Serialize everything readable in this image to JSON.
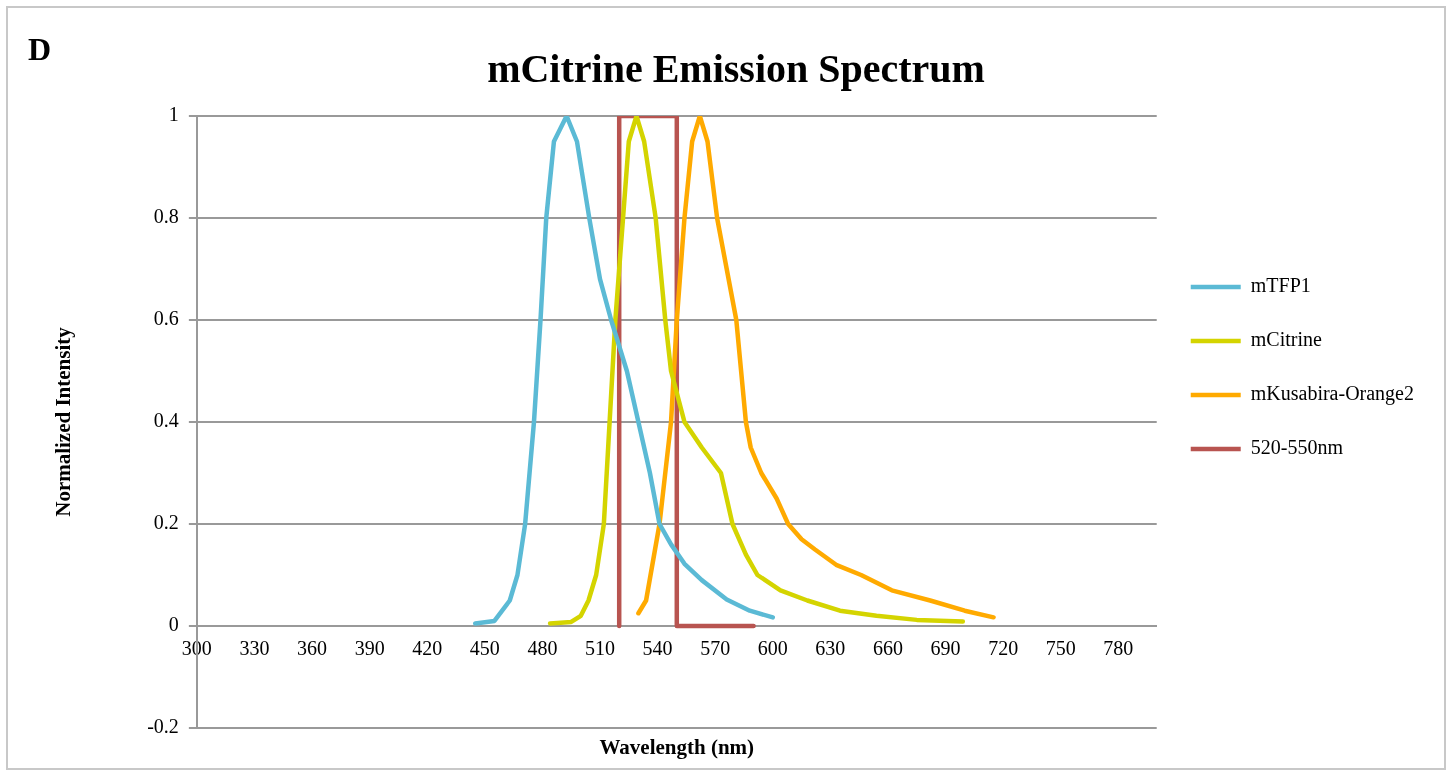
{
  "chart_data": {
    "type": "line",
    "title": "mCitrine Emission Spectrum",
    "xlabel": "Wavelength (nm)",
    "ylabel": "Normalized Intensity",
    "annotations": [
      "D"
    ],
    "xlim": [
      300,
      800
    ],
    "xticks": [
      300,
      330,
      360,
      390,
      420,
      450,
      480,
      510,
      540,
      570,
      600,
      630,
      660,
      690,
      720,
      750,
      780
    ],
    "ylim": [
      -0.2,
      1
    ],
    "yticks": [
      -0.2,
      0,
      0.2,
      0.4,
      0.6,
      0.8,
      1
    ],
    "grid": "y",
    "legend": "right",
    "marker": "none",
    "line_style": "solid",
    "series": [
      {
        "name": "mTFP1",
        "color": "#5bbad5",
        "x": [
          445,
          455,
          463,
          467,
          471,
          475.6,
          479,
          482,
          486,
          492.6,
          498,
          504.4,
          510,
          515.8,
          524,
          530,
          536,
          541,
          547,
          554,
          563,
          576,
          588,
          600
        ],
        "values": [
          0.005,
          0.01,
          0.05,
          0.1,
          0.2,
          0.4,
          0.6,
          0.8,
          0.95,
          1,
          0.95,
          0.8,
          0.68,
          0.6,
          0.5,
          0.4,
          0.3,
          0.2,
          0.16,
          0.122,
          0.09,
          0.052,
          0.03,
          0.017
        ]
      },
      {
        "name": "mCitrine",
        "color": "#d4d400",
        "x": [
          484,
          495,
          500,
          504,
          508,
          512,
          515,
          518,
          522,
          525,
          529,
          533,
          539,
          544,
          547,
          554,
          563,
          573,
          579,
          586,
          592,
          604,
          618,
          635,
          654,
          675,
          699
        ],
        "values": [
          0.005,
          0.008,
          0.02,
          0.05,
          0.1,
          0.2,
          0.4,
          0.6,
          0.8,
          0.95,
          1,
          0.95,
          0.8,
          0.6,
          0.5,
          0.4,
          0.35,
          0.3,
          0.2,
          0.14,
          0.1,
          0.07,
          0.05,
          0.03,
          0.02,
          0.012,
          0.009
        ]
      },
      {
        "name": "mKusabira-Orange2",
        "color": "#ffaa00",
        "x": [
          530,
          534,
          541,
          547,
          550,
          554,
          558,
          562,
          566,
          571,
          576,
          581,
          586,
          588.5,
          594,
          602,
          608,
          615,
          622,
          633,
          646,
          662,
          682,
          700,
          715
        ],
        "values": [
          0.025,
          0.05,
          0.2,
          0.4,
          0.6,
          0.8,
          0.95,
          1,
          0.95,
          0.8,
          0.7,
          0.6,
          0.4,
          0.35,
          0.3,
          0.25,
          0.2,
          0.17,
          0.15,
          0.12,
          0.1,
          0.07,
          0.05,
          0.03,
          0.017
        ]
      },
      {
        "name": "520-550nm",
        "color": "#b85450",
        "x": [
          520,
          520,
          550,
          550,
          590
        ],
        "values": [
          0,
          1,
          1,
          0,
          0
        ]
      }
    ]
  }
}
